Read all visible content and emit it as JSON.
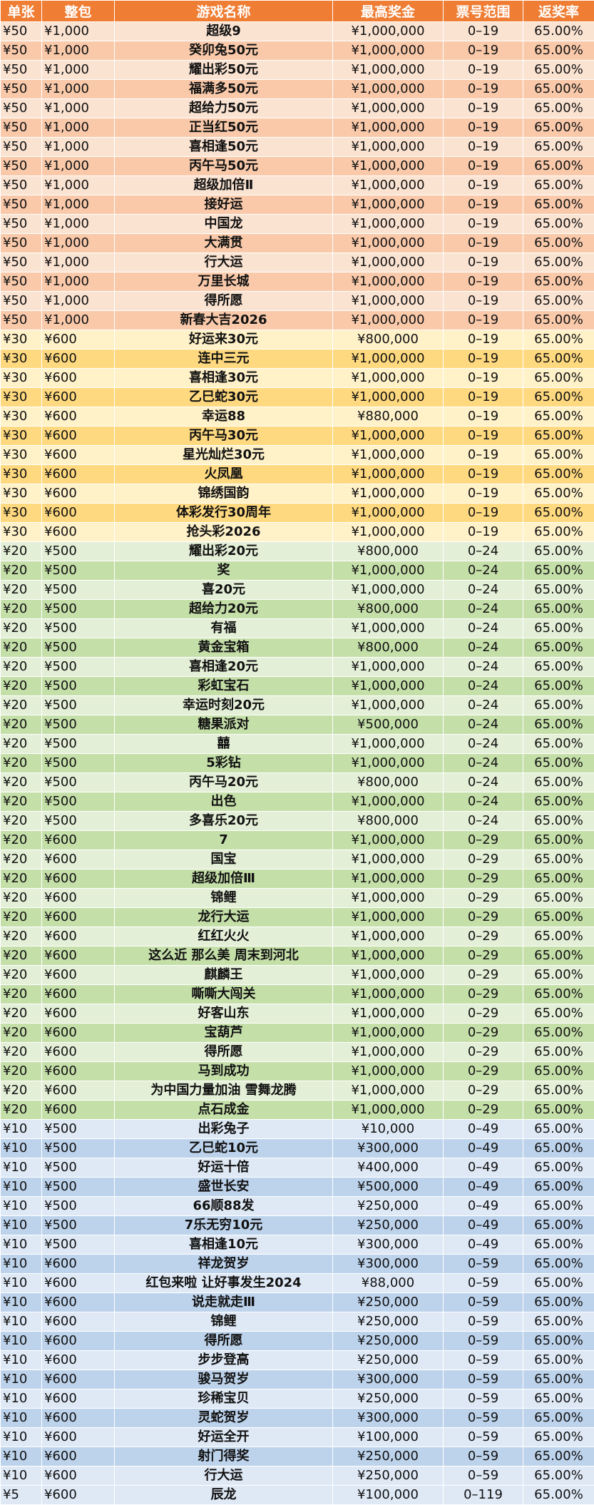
{
  "colors": {
    "header": "#ef7d33",
    "group50": [
      "#fbe3d2",
      "#f9c9aa"
    ],
    "group30": [
      "#fff1c8",
      "#ffd97f"
    ],
    "group20": [
      "#e4efd7",
      "#c5dfa9"
    ],
    "group10": [
      "#dfe9f6",
      "#bdd3ec"
    ],
    "group5": [
      "#dfe9f6",
      "#bdd3ec"
    ]
  },
  "headers": [
    "单张",
    "整包",
    "游戏名称",
    "最高奖金",
    "票号范围",
    "返奖率"
  ],
  "rows": [
    [
      "¥50",
      "¥1,000",
      "超级9",
      "¥1,000,000",
      "0–19",
      "65.00%"
    ],
    [
      "¥50",
      "¥1,000",
      "癸卯兔50元",
      "¥1,000,000",
      "0–19",
      "65.00%"
    ],
    [
      "¥50",
      "¥1,000",
      "耀出彩50元",
      "¥1,000,000",
      "0–19",
      "65.00%"
    ],
    [
      "¥50",
      "¥1,000",
      "福满多50元",
      "¥1,000,000",
      "0–19",
      "65.00%"
    ],
    [
      "¥50",
      "¥1,000",
      "超给力50元",
      "¥1,000,000",
      "0–19",
      "65.00%"
    ],
    [
      "¥50",
      "¥1,000",
      "正当红50元",
      "¥1,000,000",
      "0–19",
      "65.00%"
    ],
    [
      "¥50",
      "¥1,000",
      "喜相逢50元",
      "¥1,000,000",
      "0–19",
      "65.00%"
    ],
    [
      "¥50",
      "¥1,000",
      "丙午马50元",
      "¥1,000,000",
      "0–19",
      "65.00%"
    ],
    [
      "¥50",
      "¥1,000",
      "超级加倍Ⅱ",
      "¥1,000,000",
      "0–19",
      "65.00%"
    ],
    [
      "¥50",
      "¥1,000",
      "接好运",
      "¥1,000,000",
      "0–19",
      "65.00%"
    ],
    [
      "¥50",
      "¥1,000",
      "中国龙",
      "¥1,000,000",
      "0–19",
      "65.00%"
    ],
    [
      "¥50",
      "¥1,000",
      "大满贯",
      "¥1,000,000",
      "0–19",
      "65.00%"
    ],
    [
      "¥50",
      "¥1,000",
      "行大运",
      "¥1,000,000",
      "0–19",
      "65.00%"
    ],
    [
      "¥50",
      "¥1,000",
      "万里长城",
      "¥1,000,000",
      "0–19",
      "65.00%"
    ],
    [
      "¥50",
      "¥1,000",
      "得所愿",
      "¥1,000,000",
      "0–19",
      "65.00%"
    ],
    [
      "¥50",
      "¥1,000",
      "新春大吉2026",
      "¥1,000,000",
      "0–19",
      "65.00%"
    ],
    [
      "¥30",
      "¥600",
      "好运来30元",
      "¥800,000",
      "0–19",
      "65.00%"
    ],
    [
      "¥30",
      "¥600",
      "连中三元",
      "¥1,000,000",
      "0–19",
      "65.00%"
    ],
    [
      "¥30",
      "¥600",
      "喜相逢30元",
      "¥1,000,000",
      "0–19",
      "65.00%"
    ],
    [
      "¥30",
      "¥600",
      "乙巳蛇30元",
      "¥1,000,000",
      "0–19",
      "65.00%"
    ],
    [
      "¥30",
      "¥600",
      "幸运88",
      "¥880,000",
      "0–19",
      "65.00%"
    ],
    [
      "¥30",
      "¥600",
      "丙午马30元",
      "¥1,000,000",
      "0–19",
      "65.00%"
    ],
    [
      "¥30",
      "¥600",
      "星光灿烂30元",
      "¥1,000,000",
      "0–19",
      "65.00%"
    ],
    [
      "¥30",
      "¥600",
      "火凤凰",
      "¥1,000,000",
      "0–19",
      "65.00%"
    ],
    [
      "¥30",
      "¥600",
      "锦绣国韵",
      "¥1,000,000",
      "0–19",
      "65.00%"
    ],
    [
      "¥30",
      "¥600",
      "体彩发行30周年",
      "¥1,000,000",
      "0–19",
      "65.00%"
    ],
    [
      "¥30",
      "¥600",
      "抢头彩2026",
      "¥1,000,000",
      "0–19",
      "65.00%"
    ],
    [
      "¥20",
      "¥500",
      "耀出彩20元",
      "¥800,000",
      "0–24",
      "65.00%"
    ],
    [
      "¥20",
      "¥500",
      "奖",
      "¥1,000,000",
      "0–24",
      "65.00%"
    ],
    [
      "¥20",
      "¥500",
      "喜20元",
      "¥1,000,000",
      "0–24",
      "65.00%"
    ],
    [
      "¥20",
      "¥500",
      "超给力20元",
      "¥800,000",
      "0–24",
      "65.00%"
    ],
    [
      "¥20",
      "¥500",
      "有福",
      "¥1,000,000",
      "0–24",
      "65.00%"
    ],
    [
      "¥20",
      "¥500",
      "黄金宝箱",
      "¥800,000",
      "0–24",
      "65.00%"
    ],
    [
      "¥20",
      "¥500",
      "喜相逢20元",
      "¥1,000,000",
      "0–24",
      "65.00%"
    ],
    [
      "¥20",
      "¥500",
      "彩虹宝石",
      "¥1,000,000",
      "0–24",
      "65.00%"
    ],
    [
      "¥20",
      "¥500",
      "幸运时刻20元",
      "¥1,000,000",
      "0–24",
      "65.00%"
    ],
    [
      "¥20",
      "¥500",
      "糖果派对",
      "¥500,000",
      "0–24",
      "65.00%"
    ],
    [
      "¥20",
      "¥500",
      "囍",
      "¥1,000,000",
      "0–24",
      "65.00%"
    ],
    [
      "¥20",
      "¥500",
      "5彩钻",
      "¥1,000,000",
      "0–24",
      "65.00%"
    ],
    [
      "¥20",
      "¥500",
      "丙午马20元",
      "¥800,000",
      "0–24",
      "65.00%"
    ],
    [
      "¥20",
      "¥500",
      "出色",
      "¥1,000,000",
      "0–24",
      "65.00%"
    ],
    [
      "¥20",
      "¥500",
      "多喜乐20元",
      "¥800,000",
      "0–24",
      "65.00%"
    ],
    [
      "¥20",
      "¥600",
      "7",
      "¥1,000,000",
      "0–29",
      "65.00%"
    ],
    [
      "¥20",
      "¥600",
      "国宝",
      "¥1,000,000",
      "0–29",
      "65.00%"
    ],
    [
      "¥20",
      "¥600",
      "超级加倍Ⅲ",
      "¥1,000,000",
      "0–29",
      "65.00%"
    ],
    [
      "¥20",
      "¥600",
      "锦鲤",
      "¥1,000,000",
      "0–29",
      "65.00%"
    ],
    [
      "¥20",
      "¥600",
      "龙行大运",
      "¥1,000,000",
      "0–29",
      "65.00%"
    ],
    [
      "¥20",
      "¥600",
      "红红火火",
      "¥1,000,000",
      "0–29",
      "65.00%"
    ],
    [
      "¥20",
      "¥600",
      "这么近 那么美 周末到河北",
      "¥1,000,000",
      "0–29",
      "65.00%"
    ],
    [
      "¥20",
      "¥600",
      "麒麟王",
      "¥1,000,000",
      "0–29",
      "65.00%"
    ],
    [
      "¥20",
      "¥600",
      "嘶嘶大闯关",
      "¥1,000,000",
      "0–29",
      "65.00%"
    ],
    [
      "¥20",
      "¥600",
      "好客山东",
      "¥1,000,000",
      "0–29",
      "65.00%"
    ],
    [
      "¥20",
      "¥600",
      "宝葫芦",
      "¥1,000,000",
      "0–29",
      "65.00%"
    ],
    [
      "¥20",
      "¥600",
      "得所愿",
      "¥1,000,000",
      "0–29",
      "65.00%"
    ],
    [
      "¥20",
      "¥600",
      "马到成功",
      "¥1,000,000",
      "0–29",
      "65.00%"
    ],
    [
      "¥20",
      "¥600",
      "为中国力量加油 雪舞龙腾",
      "¥1,000,000",
      "0–29",
      "65.00%"
    ],
    [
      "¥20",
      "¥600",
      "点石成金",
      "¥1,000,000",
      "0–29",
      "65.00%"
    ],
    [
      "¥10",
      "¥500",
      "出彩兔子",
      "¥10,000",
      "0–49",
      "65.00%"
    ],
    [
      "¥10",
      "¥500",
      "乙巳蛇10元",
      "¥300,000",
      "0–49",
      "65.00%"
    ],
    [
      "¥10",
      "¥500",
      "好运十倍",
      "¥400,000",
      "0–49",
      "65.00%"
    ],
    [
      "¥10",
      "¥500",
      "盛世长安",
      "¥500,000",
      "0–49",
      "65.00%"
    ],
    [
      "¥10",
      "¥500",
      "66顺88发",
      "¥250,000",
      "0–49",
      "65.00%"
    ],
    [
      "¥10",
      "¥500",
      "7乐无穷10元",
      "¥250,000",
      "0–49",
      "65.00%"
    ],
    [
      "¥10",
      "¥500",
      "喜相逢10元",
      "¥300,000",
      "0–49",
      "65.00%"
    ],
    [
      "¥10",
      "¥600",
      "祥龙贺岁",
      "¥300,000",
      "0–59",
      "65.00%"
    ],
    [
      "¥10",
      "¥600",
      "红包来啦 让好事发生2024",
      "¥88,000",
      "0–59",
      "65.00%"
    ],
    [
      "¥10",
      "¥600",
      "说走就走Ⅲ",
      "¥250,000",
      "0–59",
      "65.00%"
    ],
    [
      "¥10",
      "¥600",
      "锦鲤",
      "¥250,000",
      "0–59",
      "65.00%"
    ],
    [
      "¥10",
      "¥600",
      "得所愿",
      "¥250,000",
      "0–59",
      "65.00%"
    ],
    [
      "¥10",
      "¥600",
      "步步登高",
      "¥250,000",
      "0–59",
      "65.00%"
    ],
    [
      "¥10",
      "¥600",
      "骏马贺岁",
      "¥300,000",
      "0–59",
      "65.00%"
    ],
    [
      "¥10",
      "¥600",
      "珍稀宝贝",
      "¥250,000",
      "0–59",
      "65.00%"
    ],
    [
      "¥10",
      "¥600",
      "灵蛇贺岁",
      "¥300,000",
      "0–59",
      "65.00%"
    ],
    [
      "¥10",
      "¥600",
      "好运全开",
      "¥100,000",
      "0–59",
      "65.00%"
    ],
    [
      "¥10",
      "¥600",
      "射门得奖",
      "¥250,000",
      "0–59",
      "65.00%"
    ],
    [
      "¥10",
      "¥600",
      "行大运",
      "¥250,000",
      "0–59",
      "65.00%"
    ],
    [
      "¥5",
      "¥600",
      "辰龙",
      "¥100,000",
      "0–119",
      "65.00%"
    ]
  ]
}
